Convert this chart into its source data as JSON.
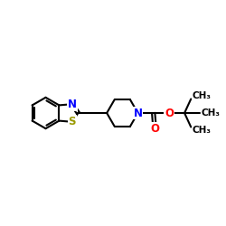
{
  "background_color": "#ffffff",
  "atom_colors": {
    "N": "#0000ff",
    "O": "#ff0000",
    "S": "#999900",
    "C": "#000000"
  },
  "bond_color": "#000000",
  "bond_width": 1.5,
  "xlim": [
    0,
    10
  ],
  "ylim": [
    3.0,
    7.0
  ],
  "figsize": [
    2.5,
    2.5
  ],
  "dpi": 100
}
